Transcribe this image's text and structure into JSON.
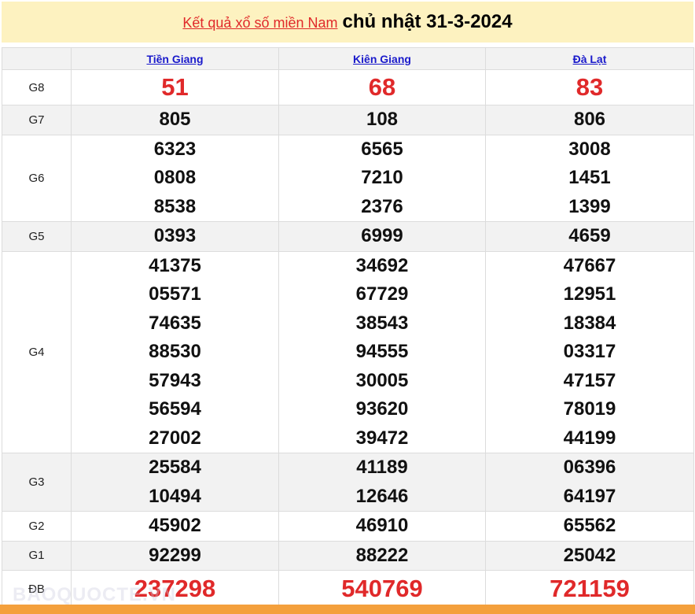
{
  "header": {
    "link": "Kết quả xổ số miền Nam",
    "date": "chủ nhật 31-3-2024"
  },
  "provinces": [
    "Tiền Giang",
    "Kiên Giang",
    "Đà Lạt"
  ],
  "rows": [
    {
      "label": "G8",
      "values": [
        [
          "51"
        ],
        [
          "68"
        ],
        [
          "83"
        ]
      ]
    },
    {
      "label": "G7",
      "values": [
        [
          "805"
        ],
        [
          "108"
        ],
        [
          "806"
        ]
      ]
    },
    {
      "label": "G6",
      "values": [
        [
          "6323",
          "0808",
          "8538"
        ],
        [
          "6565",
          "7210",
          "2376"
        ],
        [
          "3008",
          "1451",
          "1399"
        ]
      ]
    },
    {
      "label": "G5",
      "values": [
        [
          "0393"
        ],
        [
          "6999"
        ],
        [
          "4659"
        ]
      ]
    },
    {
      "label": "G4",
      "values": [
        [
          "41375",
          "05571",
          "74635",
          "88530",
          "57943",
          "56594",
          "27002"
        ],
        [
          "34692",
          "67729",
          "38543",
          "94555",
          "30005",
          "93620",
          "39472"
        ],
        [
          "47667",
          "12951",
          "18384",
          "03317",
          "47157",
          "78019",
          "44199"
        ]
      ]
    },
    {
      "label": "G3",
      "values": [
        [
          "25584",
          "10494"
        ],
        [
          "41189",
          "12646"
        ],
        [
          "06396",
          "64197"
        ]
      ]
    },
    {
      "label": "G2",
      "values": [
        [
          "45902"
        ],
        [
          "46910"
        ],
        [
          "65562"
        ]
      ]
    },
    {
      "label": "G1",
      "values": [
        [
          "92299"
        ],
        [
          "88222"
        ],
        [
          "25042"
        ]
      ]
    },
    {
      "label": "ĐB",
      "values": [
        [
          "237298"
        ],
        [
          "540769"
        ],
        [
          "721159"
        ]
      ]
    }
  ],
  "watermark": "BAOQUOCTE.VN",
  "colors": {
    "accent": "#e0292a",
    "title_bg": "#fdf2c0",
    "footer": "#f4a03c",
    "link": "#1a1acb"
  }
}
